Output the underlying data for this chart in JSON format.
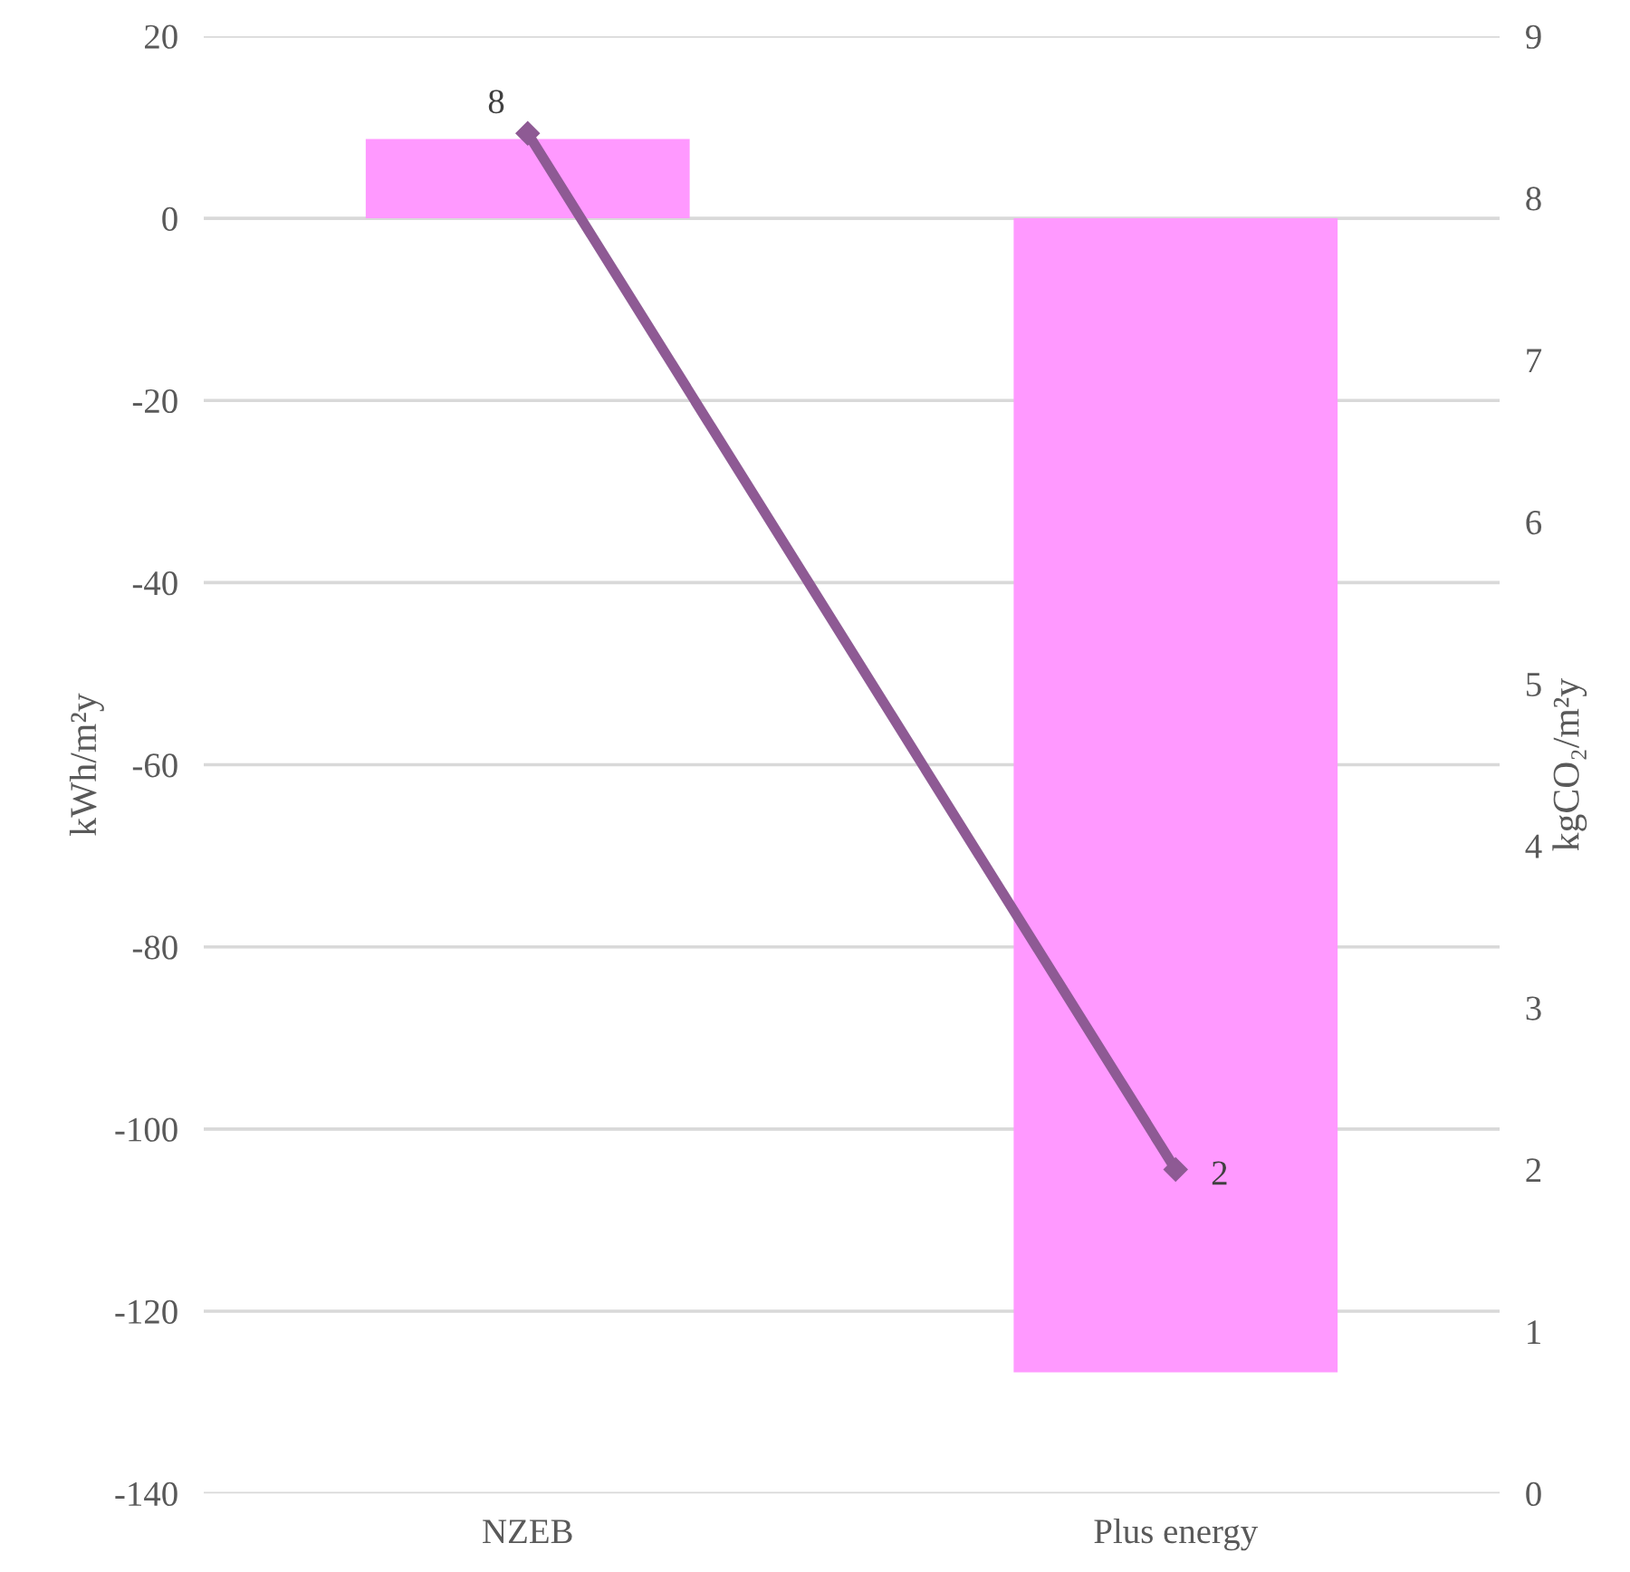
{
  "chart_data": {
    "type": "bar",
    "categories": [
      "NZEB",
      "Plus energy"
    ],
    "ylabel": "kWh/m²y",
    "y2label": "kgCO₂/m²y",
    "series": [
      {
        "color": "#ff99ff",
        "values": [
          8.7,
          -126.7
        ]
      },
      {
        "type": "line",
        "axis": "y2",
        "color": "#8e5a94",
        "values": [
          8.4,
          2.0
        ],
        "value_labels": [
          "8",
          "2"
        ],
        "marker": "diamond"
      }
    ],
    "ylim": [
      -140,
      20
    ],
    "yticks": [
      -140,
      -120,
      -100,
      -80,
      -60,
      -40,
      -20,
      0,
      20
    ],
    "y2lim": [
      0,
      9
    ],
    "y2ticks": [
      0,
      1,
      2,
      3,
      4,
      5,
      6,
      7,
      8,
      9
    ],
    "grid": "y",
    "legend": false
  }
}
